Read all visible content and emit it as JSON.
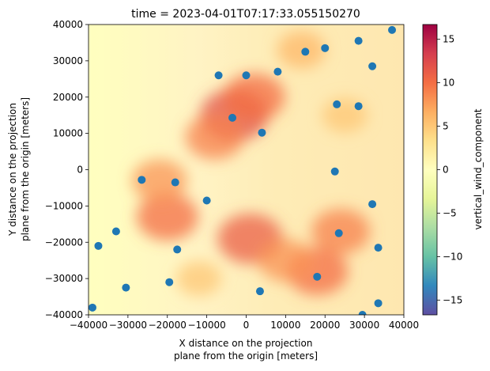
{
  "chart_data": [
    {
      "type": "heatmap",
      "title": "time = 2023-04-01T07:17:33.055150270",
      "xlabel_lines": [
        "X distance on the projection",
        "plane from the origin [meters]"
      ],
      "ylabel_lines": [
        "Y distance on the projection",
        "plane from the origin [meters]"
      ],
      "xlim": [
        -40000,
        40000
      ],
      "ylim": [
        -40000,
        40000
      ],
      "xticks": [
        -40000,
        -30000,
        -20000,
        -10000,
        0,
        10000,
        20000,
        30000,
        40000
      ],
      "yticks": [
        -40000,
        -30000,
        -20000,
        -10000,
        0,
        10000,
        20000,
        30000,
        40000
      ],
      "colorbar": {
        "label": "vertical_wind_component",
        "range": [
          -16.7,
          16.7
        ],
        "ticks": [
          -15,
          -10,
          -5,
          0,
          5,
          10,
          15
        ],
        "colormap": "Spectral_r",
        "stops": [
          "#5e4fa2",
          "#3288bd",
          "#66c2a5",
          "#abdda4",
          "#e6f598",
          "#ffffbf",
          "#fee08b",
          "#fdae61",
          "#f46d43",
          "#d53e4f",
          "#9e0142"
        ]
      },
      "field_hotspots": [
        {
          "x": -3000,
          "y": 15000,
          "value": 12
        },
        {
          "x": 2000,
          "y": 20000,
          "value": 10
        },
        {
          "x": -8000,
          "y": 9000,
          "value": 9
        },
        {
          "x": -20000,
          "y": -13000,
          "value": 10
        },
        {
          "x": -22000,
          "y": -3000,
          "value": 8
        },
        {
          "x": 1000,
          "y": -19000,
          "value": 11
        },
        {
          "x": 18000,
          "y": -28000,
          "value": 10
        },
        {
          "x": 24000,
          "y": -17000,
          "value": 9
        },
        {
          "x": 10000,
          "y": -25000,
          "value": 8
        },
        {
          "x": 14000,
          "y": 33000,
          "value": 6
        },
        {
          "x": -12000,
          "y": -30000,
          "value": 5
        },
        {
          "x": 25000,
          "y": 15000,
          "value": 5
        }
      ],
      "scatter_points": [
        [
          37000,
          38500
        ],
        [
          28500,
          35500
        ],
        [
          15000,
          32500
        ],
        [
          20000,
          33500
        ],
        [
          32000,
          28500
        ],
        [
          -7000,
          26000
        ],
        [
          0,
          26000
        ],
        [
          8000,
          27000
        ],
        [
          23000,
          18000
        ],
        [
          28500,
          17500
        ],
        [
          -3500,
          14300
        ],
        [
          4000,
          10200
        ],
        [
          -26500,
          -2800
        ],
        [
          -18000,
          -3500
        ],
        [
          22500,
          -500
        ],
        [
          -10000,
          -8500
        ],
        [
          32000,
          -9500
        ],
        [
          -33000,
          -17000
        ],
        [
          -37500,
          -21000
        ],
        [
          -17500,
          -22000
        ],
        [
          23500,
          -17500
        ],
        [
          33500,
          -21500
        ],
        [
          18000,
          -29500
        ],
        [
          -19500,
          -31000
        ],
        [
          -30500,
          -32500
        ],
        [
          3500,
          -33500
        ],
        [
          -39000,
          -38000
        ],
        [
          33500,
          -36800
        ],
        [
          29500,
          -40000
        ]
      ],
      "scatter_color": "#1f77b4"
    }
  ]
}
